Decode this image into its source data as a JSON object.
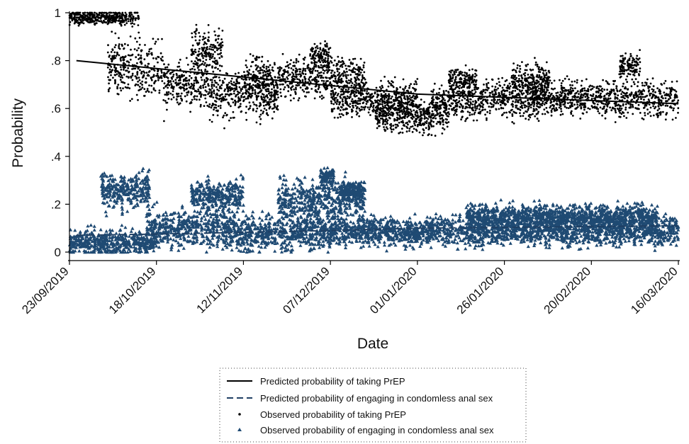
{
  "chart_data": {
    "type": "scatter",
    "xlabel": "Date",
    "ylabel": "Probability",
    "x_range": [
      "2019-09-23",
      "2020-03-16"
    ],
    "ylim": [
      0,
      1
    ],
    "x_tick_labels": [
      "23/09/2019",
      "18/10/2019",
      "12/11/2019",
      "07/12/2019",
      "01/01/2020",
      "26/01/2020",
      "20/02/2020",
      "16/03/2020"
    ],
    "x_tick_dates": [
      "2019-09-23",
      "2019-10-18",
      "2019-11-12",
      "2019-12-07",
      "2020-01-01",
      "2020-01-26",
      "2020-02-20",
      "2020-03-16"
    ],
    "y_ticks": [
      0,
      0.2,
      0.4,
      0.6,
      0.8,
      1
    ],
    "y_tick_labels": [
      "0",
      ".2",
      ".4",
      ".6",
      ".8",
      "1"
    ],
    "grid": false,
    "legend_position": "bottom",
    "series": [
      {
        "name": "Predicted probability of taking PrEP",
        "kind": "line",
        "style": "solid",
        "color": "#000000",
        "points": [
          {
            "x": "2019-09-25",
            "y": 0.8
          },
          {
            "x": "2020-01-01",
            "y": 0.66
          },
          {
            "x": "2020-03-16",
            "y": 0.62
          }
        ]
      },
      {
        "name": "Predicted probability of engaging in condomless anal sex",
        "kind": "line",
        "style": "dashed",
        "color": "#1f3f63",
        "points": [
          {
            "x": "2019-09-25",
            "y": 0.07
          },
          {
            "x": "2019-10-18",
            "y": 0.075
          },
          {
            "x": "2019-12-07",
            "y": 0.09
          },
          {
            "x": "2020-01-01",
            "y": 0.1
          },
          {
            "x": "2020-03-16",
            "y": 0.11
          }
        ]
      },
      {
        "name": "Observed probability of taking PrEP",
        "kind": "scatter",
        "marker": "dot",
        "color": "#000000",
        "segments": [
          {
            "from": "2019-09-23",
            "to": "2019-10-13",
            "mean": 0.98,
            "spread": 0.03
          },
          {
            "from": "2019-10-04",
            "to": "2019-10-20",
            "mean": 0.77,
            "spread": 0.12
          },
          {
            "from": "2019-10-20",
            "to": "2019-11-02",
            "mean": 0.7,
            "spread": 0.1
          },
          {
            "from": "2019-10-28",
            "to": "2019-11-06",
            "mean": 0.84,
            "spread": 0.09
          },
          {
            "from": "2019-11-02",
            "to": "2019-11-22",
            "mean": 0.65,
            "spread": 0.09
          },
          {
            "from": "2019-11-12",
            "to": "2019-12-17",
            "mean": 0.73,
            "spread": 0.08
          },
          {
            "from": "2019-12-01",
            "to": "2019-12-07",
            "mean": 0.82,
            "spread": 0.05
          },
          {
            "from": "2019-12-07",
            "to": "2020-01-01",
            "mean": 0.64,
            "spread": 0.07
          },
          {
            "from": "2019-12-20",
            "to": "2020-01-10",
            "mean": 0.57,
            "spread": 0.07
          },
          {
            "from": "2020-01-05",
            "to": "2020-01-20",
            "mean": 0.63,
            "spread": 0.07
          },
          {
            "from": "2020-01-10",
            "to": "2020-01-18",
            "mean": 0.72,
            "spread": 0.05
          },
          {
            "from": "2020-01-20",
            "to": "2020-02-05",
            "mean": 0.64,
            "spread": 0.08
          },
          {
            "from": "2020-01-28",
            "to": "2020-02-08",
            "mean": 0.72,
            "spread": 0.07
          },
          {
            "from": "2020-02-03",
            "to": "2020-03-16",
            "mean": 0.64,
            "spread": 0.07
          },
          {
            "from": "2020-02-28",
            "to": "2020-03-05",
            "mean": 0.78,
            "spread": 0.05
          }
        ]
      },
      {
        "name": "Observed probability of engaging in condomless anal sex",
        "kind": "scatter",
        "marker": "triangle",
        "color": "#1f4a73",
        "segments": [
          {
            "from": "2019-09-23",
            "to": "2019-10-18",
            "mean": 0.04,
            "spread": 0.05
          },
          {
            "from": "2019-10-02",
            "to": "2019-10-16",
            "mean": 0.26,
            "spread": 0.07
          },
          {
            "from": "2019-10-15",
            "to": "2019-11-10",
            "mean": 0.1,
            "spread": 0.08
          },
          {
            "from": "2019-10-28",
            "to": "2019-11-12",
            "mean": 0.24,
            "spread": 0.06
          },
          {
            "from": "2019-11-10",
            "to": "2019-12-07",
            "mean": 0.08,
            "spread": 0.07
          },
          {
            "from": "2019-11-22",
            "to": "2019-12-17",
            "mean": 0.22,
            "spread": 0.08
          },
          {
            "from": "2019-12-04",
            "to": "2019-12-08",
            "mean": 0.32,
            "spread": 0.03
          },
          {
            "from": "2019-12-10",
            "to": "2019-12-17",
            "mean": 0.26,
            "spread": 0.03
          },
          {
            "from": "2019-12-07",
            "to": "2020-03-16",
            "mean": 0.09,
            "spread": 0.06
          },
          {
            "from": "2020-01-15",
            "to": "2020-03-10",
            "mean": 0.15,
            "spread": 0.05
          }
        ]
      }
    ]
  }
}
